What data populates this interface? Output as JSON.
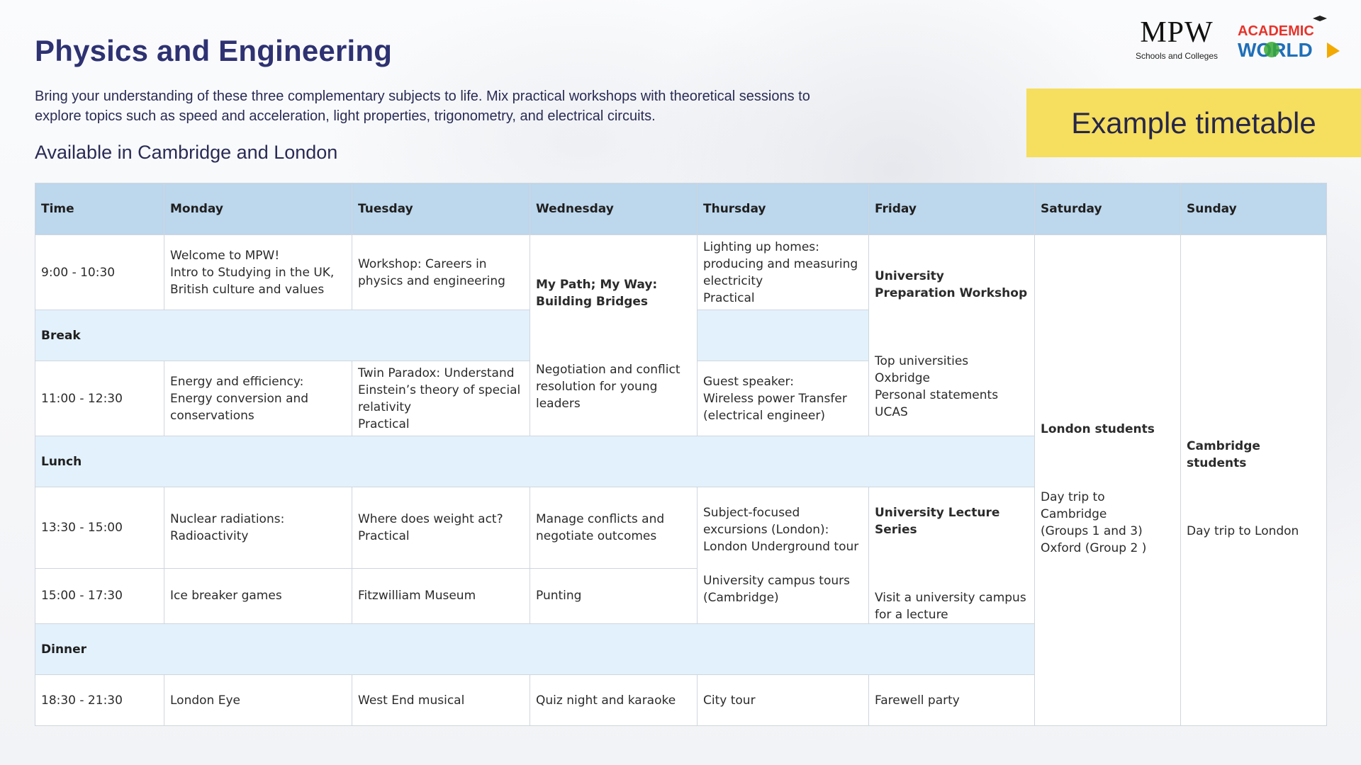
{
  "header": {
    "title": "Physics and Engineering",
    "intro": "Bring your understanding of these three complementary subjects to life. Mix practical workshops with theoretical sessions to explore topics such as speed and acceleration, light properties, trigonometry, and electrical circuits.",
    "availability": "Available in Cambridge and London",
    "banner": "Example timetable"
  },
  "logos": {
    "mpw_letters": "MPW",
    "mpw_sub": "Schools and Colleges",
    "academic_world_top": "ACADEMIC",
    "academic_world_bottom": "WORLD"
  },
  "timetable": {
    "headers": [
      "Time",
      "Monday",
      "Tuesday",
      "Wednesday",
      "Thursday",
      "Friday",
      "Saturday",
      "Sunday"
    ],
    "rows": {
      "r1": {
        "time": "9:00 - 10:30",
        "monday": "Welcome to MPW!\nIntro to Studying in the UK, British culture and values",
        "tuesday": "Workshop: Careers in physics and engineering",
        "thursday": "Lighting up homes: producing and measuring electricity\nPractical"
      },
      "break": "Break",
      "r2": {
        "time": "11:00 - 12:30",
        "monday": "Energy and efficiency: Energy conversion and conservations",
        "tuesday": "Twin Paradox: Understand Einstein’s theory of special relativity\nPractical",
        "thursday": "Guest speaker:\nWireless power Transfer (electrical engineer)"
      },
      "lunch": "Lunch",
      "r3": {
        "time": "13:30 - 15:00",
        "monday": "Nuclear radiations: Radioactivity",
        "tuesday": "Where does weight act?\nPractical",
        "wednesday": "Manage conflicts and negotiate outcomes"
      },
      "r4": {
        "time": "15:00 - 17:30",
        "monday": "Ice breaker games",
        "tuesday": "Fitzwilliam Museum",
        "wednesday": "Punting"
      },
      "dinner": "Dinner",
      "r5": {
        "time": "18:30 - 21:30",
        "monday": "London Eye",
        "tuesday": "West End musical",
        "wednesday": "Quiz night and karaoke",
        "thursday": "City tour",
        "friday": "Farewell party"
      }
    },
    "wednesday_morning": {
      "heading": "My Path; My Way: Building Bridges",
      "body": "Negotiation and conflict resolution for young leaders"
    },
    "thursday_afternoon": "Subject-focused excursions (London): London Underground tour\n\nUniversity campus tours (Cambridge)",
    "friday_morning": {
      "heading": "University Preparation Workshop",
      "body": "Top universities\nOxbridge\nPersonal statements\nUCAS"
    },
    "friday_afternoon": {
      "heading": "University Lecture Series",
      "body": "Visit a university campus for a lecture"
    },
    "saturday": {
      "heading": "London students",
      "body": "Day trip to Cambridge\n(Groups 1 and 3)\nOxford (Group 2 )"
    },
    "sunday": {
      "heading": "Cambridge students",
      "body": "Day trip to London"
    }
  },
  "colors": {
    "title": "#2e3272",
    "banner": "#f6de5e",
    "header_row": "#bdd7ec",
    "band_row": "#e3f1fc",
    "aw_red": "#e7332b",
    "aw_blue": "#1f6fb8",
    "aw_green": "#3aa935"
  }
}
